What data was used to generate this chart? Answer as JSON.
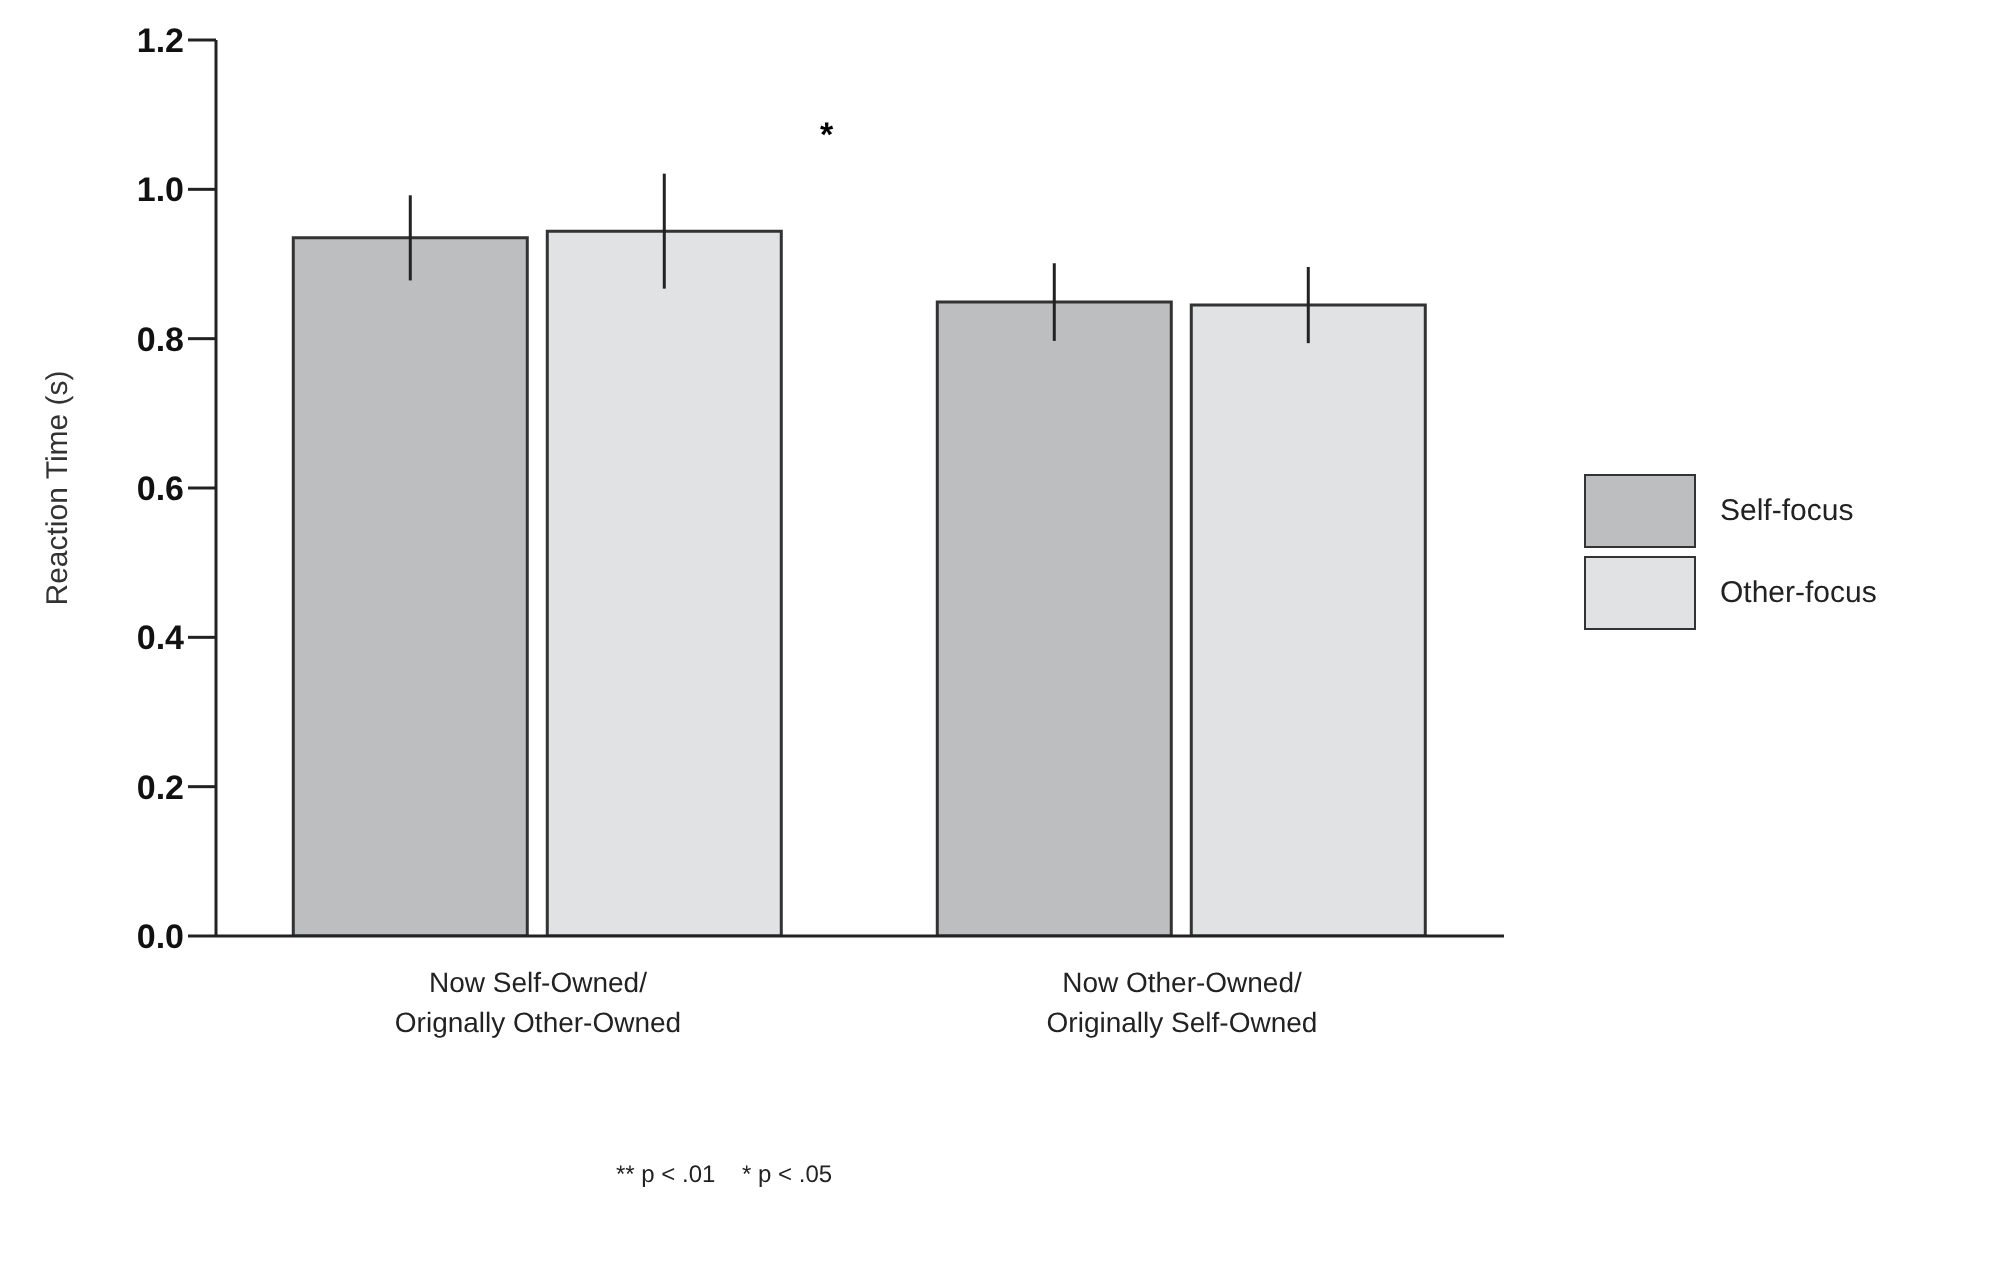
{
  "chart_data": {
    "type": "bar",
    "ylabel": "Reaction Time (s)",
    "categories": [
      "Now Self-Owned/ Orignally Other-Owned",
      "Now Other-Owned/ Originally Self-Owned"
    ],
    "series": [
      {
        "name": "Self-focus",
        "color": "#bdbec0",
        "values": [
          0.935,
          0.849
        ],
        "errors": [
          0.057,
          0.052
        ]
      },
      {
        "name": "Other-focus",
        "color": "#e1e2e4",
        "values": [
          0.944,
          0.845
        ],
        "errors": [
          0.077,
          0.051
        ]
      }
    ],
    "ylim": [
      0,
      1.2
    ],
    "yticks": [
      {
        "value": 0,
        "label": "0.0"
      },
      {
        "value": 0.2,
        "label": "0.2"
      },
      {
        "value": 0.4,
        "label": "0.4"
      },
      {
        "value": 0.6,
        "label": "0.6"
      },
      {
        "value": 0.8,
        "label": "0.8"
      },
      {
        "value": 1,
        "label": "1.0"
      },
      {
        "value": 1.2,
        "label": "1.2"
      }
    ],
    "grid": false,
    "legend": "right",
    "annotations": [
      "*",
      "** p < .01    * p < .05"
    ]
  }
}
